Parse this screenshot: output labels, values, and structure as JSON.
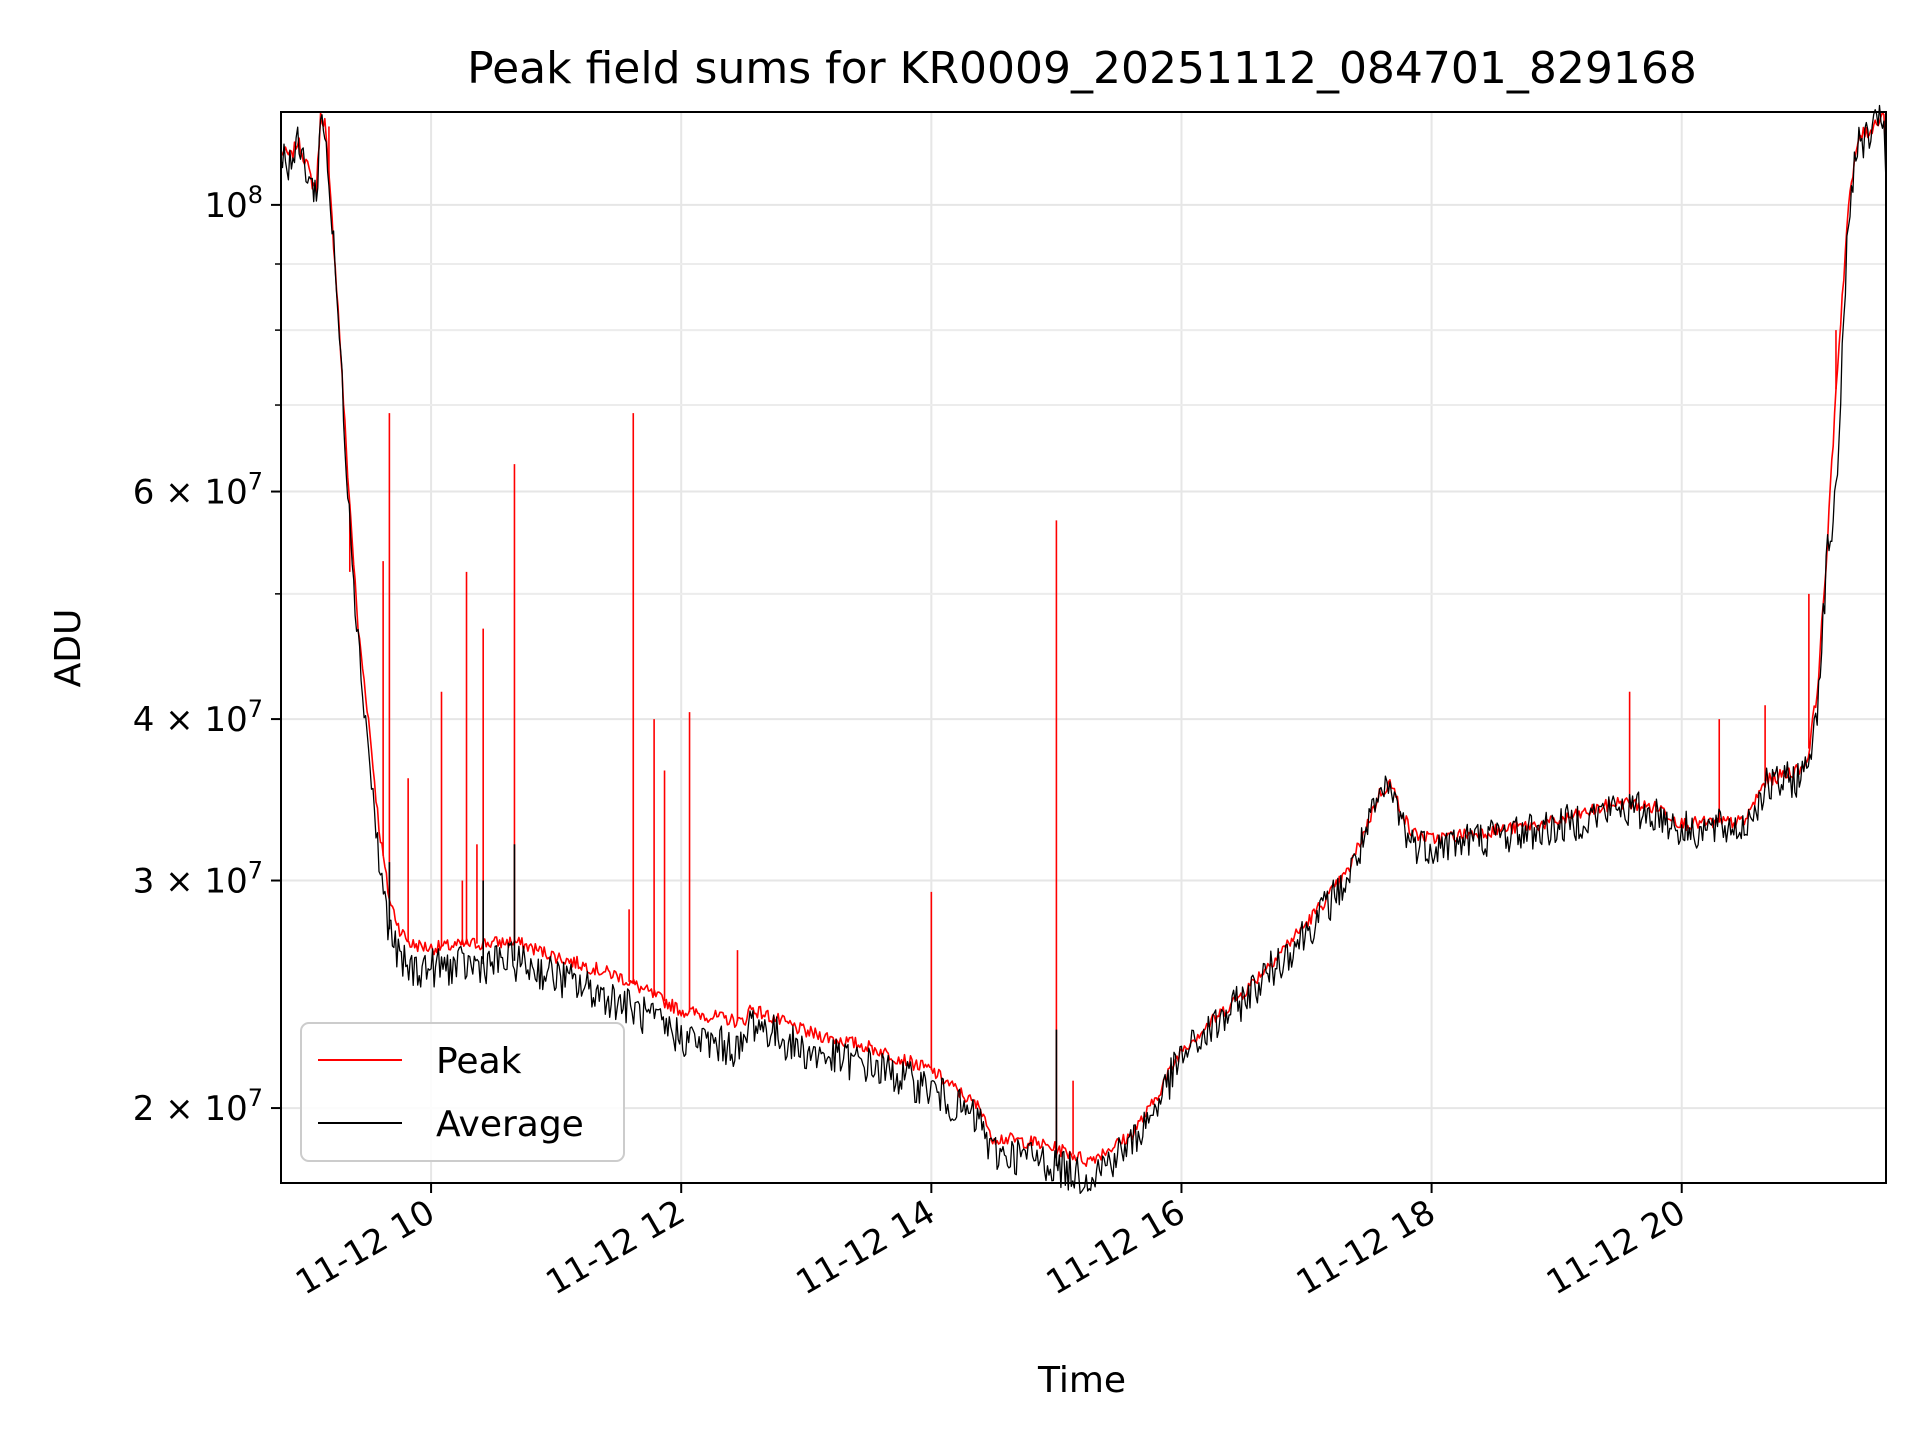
{
  "chart_data": {
    "type": "line",
    "title": "Peak field sums for KR0009_20251112_084701_829168",
    "xlabel": "Time",
    "ylabel": "ADU",
    "yscale": "log",
    "xlim": [
      "2025-11-12T08:48",
      "2025-11-12T21:38"
    ],
    "ylim": [
      17500000,
      118000000
    ],
    "xticks": [
      {
        "value": "2025-11-12T10:00",
        "label": "11-12 10"
      },
      {
        "value": "2025-11-12T12:00",
        "label": "11-12 12"
      },
      {
        "value": "2025-11-12T14:00",
        "label": "11-12 14"
      },
      {
        "value": "2025-11-12T16:00",
        "label": "11-12 16"
      },
      {
        "value": "2025-11-12T18:00",
        "label": "11-12 18"
      },
      {
        "value": "2025-11-12T20:00",
        "label": "11-12 20"
      }
    ],
    "yticks_major": [
      {
        "value": 100000000,
        "base": "10",
        "exp": "8",
        "mant": ""
      },
      {
        "value": 60000000,
        "base": "10",
        "exp": "7",
        "mant": "6"
      },
      {
        "value": 40000000,
        "base": "10",
        "exp": "7",
        "mant": "4"
      },
      {
        "value": 30000000,
        "base": "10",
        "exp": "7",
        "mant": "3"
      },
      {
        "value": 20000000,
        "base": "10",
        "exp": "7",
        "mant": "2"
      }
    ],
    "yticks_minor": [
      90000000,
      80000000,
      70000000,
      50000000
    ],
    "grid": true,
    "legend_position": "lower-left",
    "series": [
      {
        "name": "Peak",
        "color": "#ff0000",
        "points": [
          [
            "2025-11-12T08:48",
            110000000
          ],
          [
            "2025-11-12T08:53",
            109000000
          ],
          [
            "2025-11-12T08:56",
            112000000
          ],
          [
            "2025-11-12T09:00",
            108000000
          ],
          [
            "2025-11-12T09:03",
            104000000
          ],
          [
            "2025-11-12T09:05",
            103000000
          ],
          [
            "2025-11-12T09:07",
            117000000
          ],
          [
            "2025-11-12T09:09",
            116000000
          ],
          [
            "2025-11-12T09:11",
            105000000
          ],
          [
            "2025-11-12T09:14",
            90000000
          ],
          [
            "2025-11-12T09:16",
            80000000
          ],
          [
            "2025-11-12T09:20",
            62000000
          ],
          [
            "2025-11-12T09:25",
            47000000
          ],
          [
            "2025-11-12T09:30",
            40000000
          ],
          [
            "2025-11-12T09:35",
            33000000
          ],
          [
            "2025-11-12T09:40",
            29000000
          ],
          [
            "2025-11-12T09:45",
            27500000
          ],
          [
            "2025-11-12T09:50",
            26800000
          ],
          [
            "2025-11-12T10:00",
            26600000
          ],
          [
            "2025-11-12T10:20",
            26800000
          ],
          [
            "2025-11-12T10:40",
            26900000
          ],
          [
            "2025-11-12T11:00",
            26200000
          ],
          [
            "2025-11-12T11:30",
            25300000
          ],
          [
            "2025-11-12T12:00",
            23800000
          ],
          [
            "2025-11-12T12:30",
            23300000
          ],
          [
            "2025-11-12T12:33",
            23900000
          ],
          [
            "2025-11-12T13:00",
            22900000
          ],
          [
            "2025-11-12T13:30",
            22300000
          ],
          [
            "2025-11-12T14:00",
            21400000
          ],
          [
            "2025-11-12T14:25",
            19900000
          ],
          [
            "2025-11-12T14:28",
            19000000
          ],
          [
            "2025-11-12T14:50",
            18800000
          ],
          [
            "2025-11-12T15:05",
            18500000
          ],
          [
            "2025-11-12T15:15",
            18200000
          ],
          [
            "2025-11-12T15:35",
            19000000
          ],
          [
            "2025-11-12T15:45",
            20000000
          ],
          [
            "2025-11-12T16:00",
            22200000
          ],
          [
            "2025-11-12T16:30",
            24600000
          ],
          [
            "2025-11-12T17:00",
            27800000
          ],
          [
            "2025-11-12T17:20",
            30500000
          ],
          [
            "2025-11-12T17:35",
            35000000
          ],
          [
            "2025-11-12T17:40",
            35700000
          ],
          [
            "2025-11-12T17:50",
            32700000
          ],
          [
            "2025-11-12T18:00",
            32300000
          ],
          [
            "2025-11-12T18:30",
            32800000
          ],
          [
            "2025-11-12T19:00",
            33300000
          ],
          [
            "2025-11-12T19:30",
            34500000
          ],
          [
            "2025-11-12T19:50",
            34100000
          ],
          [
            "2025-11-12T20:00",
            33200000
          ],
          [
            "2025-11-12T20:30",
            33300000
          ],
          [
            "2025-11-12T20:40",
            35800000
          ],
          [
            "2025-11-12T20:55",
            36500000
          ],
          [
            "2025-11-12T21:00",
            37000000
          ],
          [
            "2025-11-12T21:05",
            42000000
          ],
          [
            "2025-11-12T21:10",
            55000000
          ],
          [
            "2025-11-12T21:14",
            72000000
          ],
          [
            "2025-11-12T21:20",
            100000000
          ],
          [
            "2025-11-12T21:25",
            113000000
          ],
          [
            "2025-11-12T21:30",
            114000000
          ],
          [
            "2025-11-12T21:37",
            118000000
          ],
          [
            "2025-11-12T21:38",
            108000000
          ]
        ],
        "spikes": [
          [
            "2025-11-12T09:11",
            115000000
          ],
          [
            "2025-11-12T09:21",
            52000000
          ],
          [
            "2025-11-12T09:37",
            53000000
          ],
          [
            "2025-11-12T09:40",
            69000000
          ],
          [
            "2025-11-12T09:49",
            36000000
          ],
          [
            "2025-11-12T10:05",
            42000000
          ],
          [
            "2025-11-12T10:15",
            30000000
          ],
          [
            "2025-11-12T10:17",
            52000000
          ],
          [
            "2025-11-12T10:22",
            32000000
          ],
          [
            "2025-11-12T10:25",
            47000000
          ],
          [
            "2025-11-12T10:40",
            63000000
          ],
          [
            "2025-11-12T11:35",
            28500000
          ],
          [
            "2025-11-12T11:37",
            69000000
          ],
          [
            "2025-11-12T11:47",
            40000000
          ],
          [
            "2025-11-12T11:52",
            36500000
          ],
          [
            "2025-11-12T12:04",
            40500000
          ],
          [
            "2025-11-12T12:27",
            26500000
          ],
          [
            "2025-11-12T14:00",
            29400000
          ],
          [
            "2025-11-12T15:00",
            57000000
          ],
          [
            "2025-11-12T15:08",
            21000000
          ],
          [
            "2025-11-12T19:35",
            42000000
          ],
          [
            "2025-11-12T20:18",
            40000000
          ],
          [
            "2025-11-12T20:40",
            41000000
          ],
          [
            "2025-11-12T21:01",
            50000000
          ],
          [
            "2025-11-12T21:14",
            80000000
          ]
        ]
      },
      {
        "name": "Average",
        "color": "#000000",
        "points": [
          [
            "2025-11-12T08:48",
            109000000
          ],
          [
            "2025-11-12T08:53",
            108000000
          ],
          [
            "2025-11-12T08:56",
            111000000
          ],
          [
            "2025-11-12T09:00",
            107000000
          ],
          [
            "2025-11-12T09:03",
            103000000
          ],
          [
            "2025-11-12T09:05",
            102000000
          ],
          [
            "2025-11-12T09:07",
            116000000
          ],
          [
            "2025-11-12T09:09",
            115000000
          ],
          [
            "2025-11-12T09:11",
            104000000
          ],
          [
            "2025-11-12T09:14",
            89000000
          ],
          [
            "2025-11-12T09:16",
            79000000
          ],
          [
            "2025-11-12T09:20",
            61000000
          ],
          [
            "2025-11-12T09:25",
            46000000
          ],
          [
            "2025-11-12T09:30",
            38000000
          ],
          [
            "2025-11-12T09:35",
            31000000
          ],
          [
            "2025-11-12T09:40",
            27500000
          ],
          [
            "2025-11-12T09:45",
            26000000
          ],
          [
            "2025-11-12T09:50",
            25600000
          ],
          [
            "2025-11-12T10:00",
            25700000
          ],
          [
            "2025-11-12T10:20",
            25800000
          ],
          [
            "2025-11-12T10:40",
            26000000
          ],
          [
            "2025-11-12T11:00",
            25300000
          ],
          [
            "2025-11-12T11:30",
            24200000
          ],
          [
            "2025-11-12T12:00",
            22700000
          ],
          [
            "2025-11-12T12:30",
            22200000
          ],
          [
            "2025-11-12T12:33",
            23400000
          ],
          [
            "2025-11-12T13:00",
            22100000
          ],
          [
            "2025-11-12T13:30",
            21600000
          ],
          [
            "2025-11-12T14:00",
            20700000
          ],
          [
            "2025-11-12T14:25",
            19400000
          ],
          [
            "2025-11-12T14:28",
            18500000
          ],
          [
            "2025-11-12T14:50",
            18300000
          ],
          [
            "2025-11-12T15:05",
            17900000
          ],
          [
            "2025-11-12T15:15",
            17700000
          ],
          [
            "2025-11-12T15:35",
            18700000
          ],
          [
            "2025-11-12T15:45",
            19700000
          ],
          [
            "2025-11-12T16:00",
            21900000
          ],
          [
            "2025-11-12T16:30",
            24300000
          ],
          [
            "2025-11-12T17:00",
            27400000
          ],
          [
            "2025-11-12T17:20",
            30100000
          ],
          [
            "2025-11-12T17:35",
            34700000
          ],
          [
            "2025-11-12T17:40",
            35300000
          ],
          [
            "2025-11-12T17:50",
            32100000
          ],
          [
            "2025-11-12T18:00",
            31900000
          ],
          [
            "2025-11-12T18:30",
            32500000
          ],
          [
            "2025-11-12T19:00",
            33000000
          ],
          [
            "2025-11-12T19:30",
            34200000
          ],
          [
            "2025-11-12T19:50",
            33700000
          ],
          [
            "2025-11-12T20:00",
            32800000
          ],
          [
            "2025-11-12T20:30",
            33000000
          ],
          [
            "2025-11-12T20:40",
            35400000
          ],
          [
            "2025-11-12T20:55",
            36000000
          ],
          [
            "2025-11-12T21:00",
            36500000
          ],
          [
            "2025-11-12T21:05",
            41000000
          ],
          [
            "2025-11-12T21:10",
            54000000
          ],
          [
            "2025-11-12T21:14",
            59000000
          ],
          [
            "2025-11-12T21:20",
            99000000
          ],
          [
            "2025-11-12T21:25",
            112000000
          ],
          [
            "2025-11-12T21:30",
            113000000
          ],
          [
            "2025-11-12T21:37",
            117000000
          ],
          [
            "2025-11-12T21:38",
            104000000
          ]
        ],
        "spikes": [
          [
            "2025-11-12T09:40",
            31000000
          ],
          [
            "2025-11-12T10:25",
            30000000
          ],
          [
            "2025-11-12T10:40",
            32000000
          ],
          [
            "2025-11-12T15:00",
            23000000
          ]
        ]
      }
    ]
  }
}
